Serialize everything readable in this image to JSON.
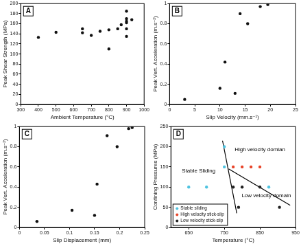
{
  "chart_data": [
    {
      "type": "scatter",
      "title": "A",
      "x_label": "Ambient Temperature (°C)",
      "y_label": "Peak Shear Strength (MPa)",
      "x": [
        400,
        500,
        650,
        650,
        700,
        750,
        800,
        800,
        850,
        870,
        900,
        900,
        900,
        900,
        900,
        900,
        930
      ],
      "values": [
        133,
        143,
        150,
        142,
        137,
        145,
        110,
        148,
        150,
        158,
        185,
        170,
        165,
        162,
        150,
        135,
        168
      ],
      "color": "#111111",
      "marker": "circle",
      "xlim": [
        300,
        1000
      ],
      "xticks": [
        300,
        400,
        500,
        600,
        700,
        800,
        900,
        1000
      ],
      "ylim": [
        0,
        200
      ],
      "yticks": [
        0,
        20,
        40,
        60,
        80,
        100,
        120,
        140,
        160,
        180,
        200
      ],
      "grid": false
    },
    {
      "type": "scatter",
      "title": "B",
      "x_label": "Slip Velocity (mm.s⁻¹)",
      "y_label": "Peak Vert. Acceleration (m.s⁻²)",
      "x": [
        3,
        10,
        11,
        13,
        14,
        15.5,
        18,
        19.5
      ],
      "values": [
        0.05,
        0.16,
        0.42,
        0.11,
        0.9,
        0.8,
        0.97,
        0.99
      ],
      "color": "#111111",
      "marker": "circle",
      "xlim": [
        0,
        25
      ],
      "xticks": [
        0,
        5,
        10,
        15,
        20,
        25
      ],
      "ylim": [
        0,
        1
      ],
      "yticks": [
        0,
        0.2,
        0.4,
        0.6,
        0.8,
        1
      ],
      "grid": false
    },
    {
      "type": "scatter",
      "title": "C",
      "x_label": "Slip Displacement (mm)",
      "y_label": "Peak Vert. Acceleration (m.s⁻²)",
      "x": [
        0.035,
        0.105,
        0.15,
        0.155,
        0.175,
        0.195,
        0.218,
        0.225
      ],
      "values": [
        0.06,
        0.17,
        0.12,
        0.43,
        0.91,
        0.8,
        0.98,
        0.99
      ],
      "color": "#111111",
      "marker": "circle",
      "xlim": [
        0,
        0.25
      ],
      "xticks": [
        0,
        0.05,
        0.1,
        0.15,
        0.2,
        0.25
      ],
      "ylim": [
        0,
        1
      ],
      "yticks": [
        0,
        0.2,
        0.4,
        0.6,
        0.8,
        1
      ],
      "grid": false
    },
    {
      "type": "scatter",
      "title": "D",
      "x_label": "Temperature (°C)",
      "y_label": "Confining Pressures (MPa)",
      "series": [
        {
          "name": "Stable sliding",
          "color": "#4fc3e0",
          "marker": "circle",
          "x": [
            650,
            700,
            750,
            750,
            875
          ],
          "values": [
            100,
            100,
            150,
            200,
            100
          ]
        },
        {
          "name": "High velocity stick-slip",
          "color": "#e8452a",
          "marker": "circle",
          "x": [
            775,
            800,
            825,
            850
          ],
          "values": [
            150,
            150,
            150,
            150
          ]
        },
        {
          "name": "Low velocity stick-slip",
          "color": "#222222",
          "marker": "circle",
          "x": [
            790,
            775,
            800,
            850,
            905
          ],
          "values": [
            50,
            100,
            100,
            100,
            50
          ]
        },
        {
          "type": "line",
          "color": "#000000",
          "line_style": "solid",
          "x": [
            745,
            785
          ],
          "values": [
            215,
            35
          ]
        },
        {
          "type": "line",
          "color": "#000000",
          "line_style": "solid",
          "x": [
            762,
            935
          ],
          "values": [
            145,
            55
          ]
        }
      ],
      "annotations": [
        {
          "text": "Stable Sliding",
          "x": 678,
          "y": 140
        },
        {
          "text": "High velocity domian",
          "x": 850,
          "y": 192
        },
        {
          "text": "Low velocity domain",
          "x": 868,
          "y": 78
        }
      ],
      "legend": "lower left",
      "xlim": [
        600,
        950
      ],
      "xticks": [
        650,
        750,
        850,
        950
      ],
      "ylim": [
        0,
        250
      ],
      "yticks": [
        0,
        50,
        100,
        150,
        200,
        250
      ],
      "grid": false
    }
  ]
}
